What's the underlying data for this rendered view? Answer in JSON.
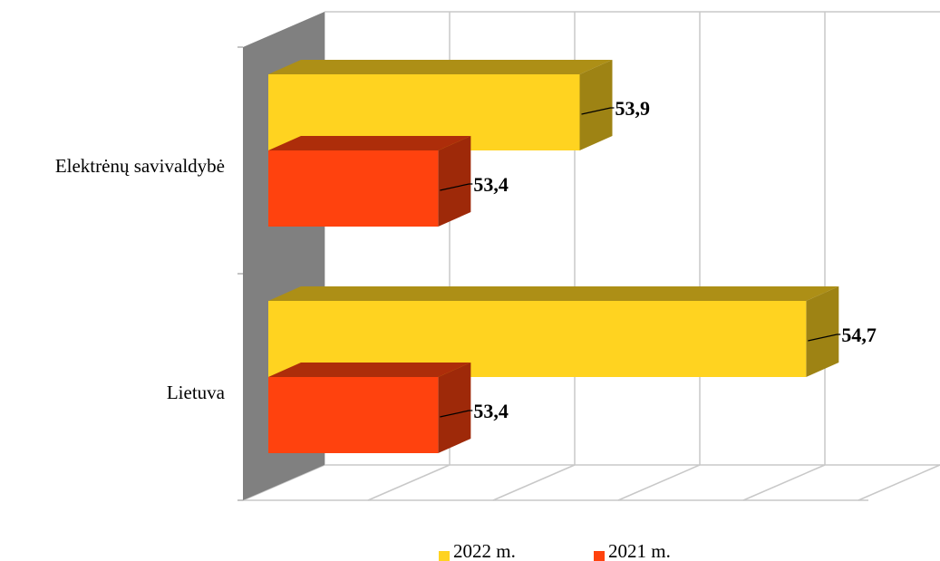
{
  "chart_data": {
    "type": "bar",
    "orientation": "horizontal",
    "three_d": true,
    "categories": [
      "Elektrėnų savivaldybė",
      "Lietuva"
    ],
    "series": [
      {
        "name": "2022 m.",
        "values": [
          53.9,
          54.7
        ],
        "labels": [
          "53,9",
          "54,7"
        ],
        "color": "#FFD320"
      },
      {
        "name": "2021 m.",
        "values": [
          53.4,
          53.4
        ],
        "labels": [
          "53,4",
          "53,4"
        ],
        "color": "#FF420E"
      }
    ],
    "title": "",
    "xlabel": "",
    "ylabel": "",
    "xlim": [
      52.8,
      55.0
    ],
    "grid": true,
    "legend_position": "bottom"
  },
  "legend": {
    "item_2022": "2022 m.",
    "item_2021": "2021 m."
  }
}
